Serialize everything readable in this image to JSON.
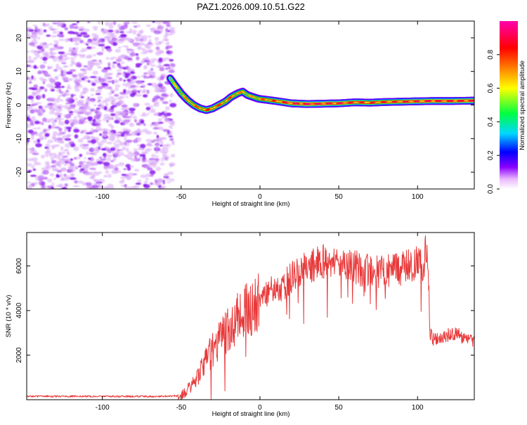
{
  "title": "PAZ1.2026.009.10.51.G22",
  "chart_data": [
    {
      "type": "heatmap",
      "panel": "top",
      "xlabel": "Height of straight line (km)",
      "ylabel": "Frequency (Hz)",
      "xlim": [
        -148,
        136
      ],
      "ylim": [
        -25,
        25
      ],
      "xticks": [
        -100,
        -50,
        0,
        50,
        100
      ],
      "yticks": [
        -20,
        -10,
        0,
        10,
        20
      ],
      "colorbar": {
        "label": "Normalized spectral amplitude",
        "range": [
          0,
          1
        ],
        "ticks": [
          0.0,
          0.2,
          0.4,
          0.6,
          0.8
        ],
        "colors": [
          "#ffffff",
          "#e9b6ff",
          "#8a00ff",
          "#0000ff",
          "#00d8ff",
          "#00ff40",
          "#ffff00",
          "#ff8000",
          "#ff0000",
          "#ff0066",
          "#ff00aa"
        ]
      },
      "noise_region": {
        "x_from": -148,
        "x_to": -55,
        "description_value": "low-amplitude scattered noise"
      },
      "ridge": {
        "x": [
          -57,
          -54,
          -50,
          -46,
          -42,
          -38,
          -34,
          -30,
          -26,
          -22,
          -18,
          -14,
          -11,
          -8,
          -5,
          -2,
          0,
          5,
          10,
          20,
          30,
          40,
          50,
          60,
          70,
          80,
          90,
          100,
          110,
          120,
          136
        ],
        "y": [
          8,
          6,
          3.5,
          1.5,
          0,
          -1,
          -1.5,
          -1,
          0,
          1,
          2.5,
          3.5,
          4,
          3,
          2.5,
          2,
          1.8,
          1.5,
          1.2,
          0.5,
          0.3,
          0.4,
          0.5,
          0.8,
          0.7,
          0.9,
          1.0,
          1.1,
          1.2,
          1.2,
          1.3
        ],
        "amplitude": [
          0.45,
          0.55,
          0.6,
          0.65,
          0.7,
          0.72,
          0.75,
          0.75,
          0.72,
          0.72,
          0.7,
          0.68,
          0.65,
          0.6,
          0.62,
          0.65,
          0.68,
          0.72,
          0.75,
          0.85,
          0.9,
          0.88,
          0.85,
          0.82,
          0.8,
          0.8,
          0.82,
          0.85,
          0.85,
          0.85,
          0.85
        ]
      }
    },
    {
      "type": "line",
      "panel": "bottom",
      "xlabel": "Height of straight line (km)",
      "ylabel": "SNR (10 * v/v)",
      "xlim": [
        -148,
        136
      ],
      "ylim": [
        0,
        7500
      ],
      "xticks": [
        -100,
        -50,
        0,
        50,
        100
      ],
      "yticks": [
        2000,
        4000,
        6000
      ],
      "series": [
        {
          "name": "SNR",
          "color": "#e8393a",
          "x": [
            -148,
            -120,
            -90,
            -60,
            -52,
            -48,
            -44,
            -40,
            -36,
            -32,
            -28,
            -24,
            -20,
            -16,
            -12,
            -8,
            -4,
            0,
            4,
            8,
            12,
            16,
            20,
            25,
            30,
            35,
            40,
            45,
            50,
            55,
            60,
            65,
            70,
            75,
            80,
            85,
            90,
            95,
            100,
            104,
            106,
            107,
            108,
            110,
            115,
            120,
            125,
            130,
            136
          ],
          "y": [
            150,
            150,
            150,
            150,
            170,
            300,
            600,
            1000,
            1500,
            2000,
            2500,
            2800,
            3200,
            3500,
            3800,
            4000,
            4300,
            4500,
            4800,
            4900,
            5000,
            5200,
            5500,
            5700,
            5900,
            6100,
            6200,
            6000,
            6100,
            5900,
            6000,
            5800,
            5900,
            5700,
            5800,
            5800,
            5900,
            6000,
            6100,
            6000,
            6500,
            4500,
            3000,
            2700,
            2800,
            2900,
            3000,
            2700,
            2600
          ]
        }
      ]
    }
  ]
}
